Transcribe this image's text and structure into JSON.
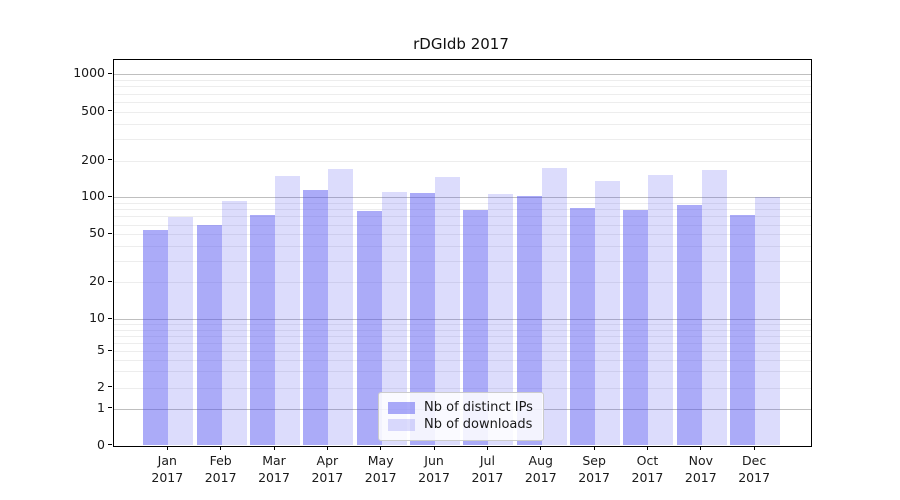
{
  "chart_data": {
    "type": "bar",
    "title": "rDGIdb 2017",
    "categories": [
      "Jan 2017",
      "Feb 2017",
      "Mar 2017",
      "Apr 2017",
      "May 2017",
      "Jun 2017",
      "Jul 2017",
      "Aug 2017",
      "Sep 2017",
      "Oct 2017",
      "Nov 2017",
      "Dec 2017"
    ],
    "series": [
      {
        "name": "Nb of distinct IPs",
        "color": "rgba(80,80,240,0.48)",
        "values": [
          54,
          60,
          72,
          115,
          78,
          108,
          79,
          103,
          82,
          79,
          87,
          72
        ]
      },
      {
        "name": "Nb of downloads",
        "color": "rgba(80,80,240,0.20)",
        "values": [
          69,
          93,
          151,
          171,
          110,
          146,
          106,
          175,
          137,
          153,
          167,
          100
        ]
      }
    ],
    "xlabel": "",
    "ylabel": "",
    "y_ticks": [
      0,
      1,
      2,
      5,
      10,
      20,
      50,
      100,
      200,
      500,
      1000
    ],
    "ylim": [
      0,
      1400
    ],
    "yscale": "log-like (linear segment below 1, labeled ticks 0,1,2,5,10,20,50,100,200,500,1000)",
    "grid": "horizontal major (1,10,100,1000) and minor log gridlines",
    "legend_position": "lower center",
    "colors": {
      "bar_base": "#5050f0",
      "major_grid": "#bfbfbf",
      "minor_grid": "#ededed",
      "axis": "#000000",
      "text": "#1a1a1a",
      "background": "#ffffff"
    }
  }
}
